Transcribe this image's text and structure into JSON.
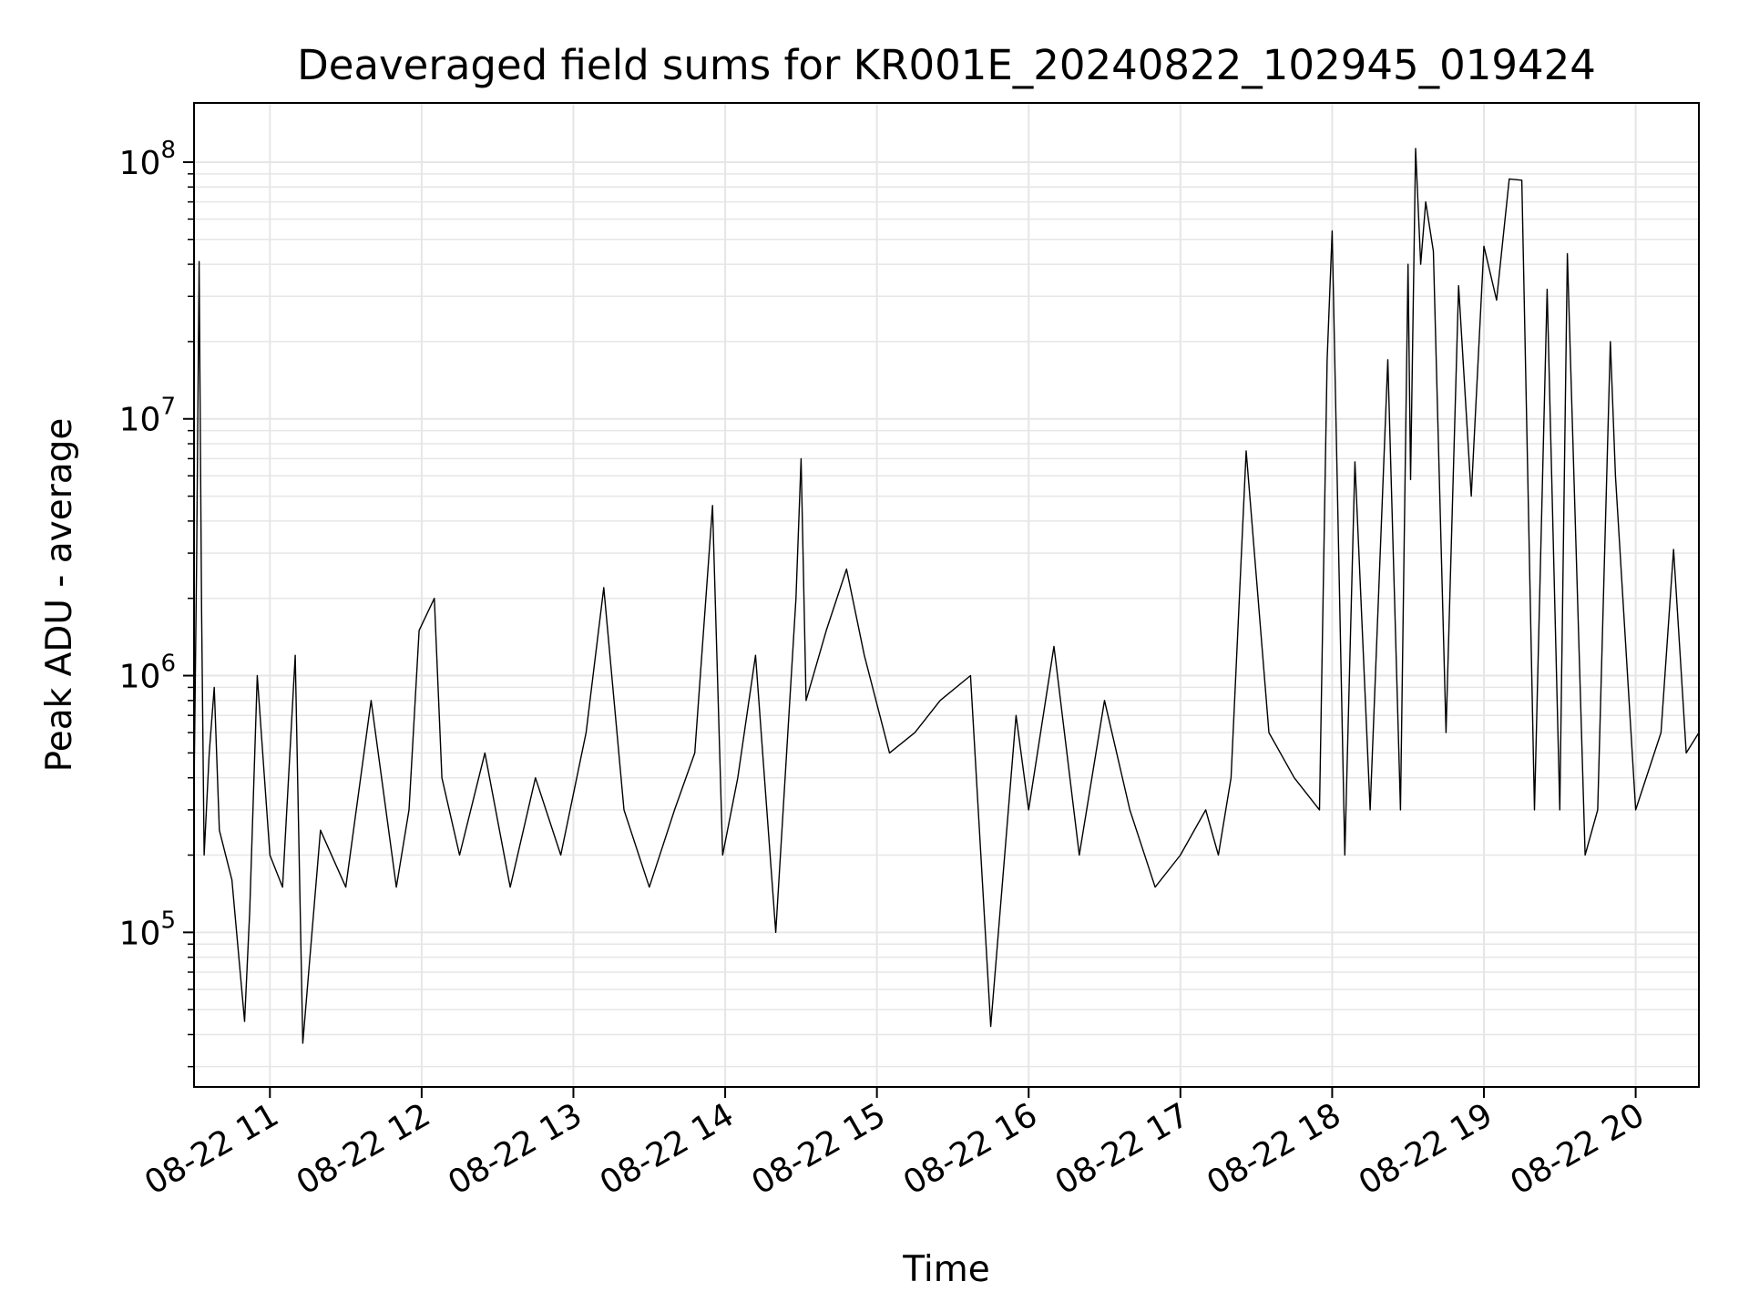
{
  "chart_data": {
    "type": "line",
    "title": "Deaveraged field sums for KR001E_20240822_102945_019424",
    "xlabel": "Time",
    "ylabel": "Peak ADU - average",
    "yscale": "log",
    "ylim": [
      25000,
      170000000
    ],
    "xlim": [
      "2024-08-22 10:30",
      "2024-08-22 20:25"
    ],
    "grid": true,
    "line_color": "#000000",
    "x_ticks": [
      {
        "time": "2024-08-22 11:00",
        "label": "08-22 11"
      },
      {
        "time": "2024-08-22 12:00",
        "label": "08-22 12"
      },
      {
        "time": "2024-08-22 13:00",
        "label": "08-22 13"
      },
      {
        "time": "2024-08-22 14:00",
        "label": "08-22 14"
      },
      {
        "time": "2024-08-22 15:00",
        "label": "08-22 15"
      },
      {
        "time": "2024-08-22 16:00",
        "label": "08-22 16"
      },
      {
        "time": "2024-08-22 17:00",
        "label": "08-22 17"
      },
      {
        "time": "2024-08-22 18:00",
        "label": "08-22 18"
      },
      {
        "time": "2024-08-22 19:00",
        "label": "08-22 19"
      },
      {
        "time": "2024-08-22 20:00",
        "label": "08-22 20"
      }
    ],
    "y_ticks": [
      {
        "value": 100000,
        "base": "10",
        "exp": "5"
      },
      {
        "value": 1000000,
        "base": "10",
        "exp": "6"
      },
      {
        "value": 10000000,
        "base": "10",
        "exp": "7"
      },
      {
        "value": 100000000,
        "base": "10",
        "exp": "8"
      }
    ],
    "series": [
      {
        "x": [
          "2024-08-22 10:30",
          "2024-08-22 10:31",
          "2024-08-22 10:32",
          "2024-08-22 10:33",
          "2024-08-22 10:34",
          "2024-08-22 10:36",
          "2024-08-22 10:38",
          "2024-08-22 10:40",
          "2024-08-22 10:45",
          "2024-08-22 10:50",
          "2024-08-22 10:52",
          "2024-08-22 10:55",
          "2024-08-22 11:00",
          "2024-08-22 11:05",
          "2024-08-22 11:10",
          "2024-08-22 11:13",
          "2024-08-22 11:20",
          "2024-08-22 11:30",
          "2024-08-22 11:40",
          "2024-08-22 11:50",
          "2024-08-22 11:55",
          "2024-08-22 11:59",
          "2024-08-22 12:05",
          "2024-08-22 12:08",
          "2024-08-22 12:15",
          "2024-08-22 12:25",
          "2024-08-22 12:35",
          "2024-08-22 12:45",
          "2024-08-22 12:55",
          "2024-08-22 13:05",
          "2024-08-22 13:12",
          "2024-08-22 13:20",
          "2024-08-22 13:30",
          "2024-08-22 13:40",
          "2024-08-22 13:48",
          "2024-08-22 13:55",
          "2024-08-22 13:59",
          "2024-08-22 14:05",
          "2024-08-22 14:12",
          "2024-08-22 14:20",
          "2024-08-22 14:28",
          "2024-08-22 14:30",
          "2024-08-22 14:32",
          "2024-08-22 14:40",
          "2024-08-22 14:48",
          "2024-08-22 14:55",
          "2024-08-22 15:05",
          "2024-08-22 15:15",
          "2024-08-22 15:25",
          "2024-08-22 15:37",
          "2024-08-22 15:45",
          "2024-08-22 15:55",
          "2024-08-22 16:00",
          "2024-08-22 16:10",
          "2024-08-22 16:20",
          "2024-08-22 16:30",
          "2024-08-22 16:40",
          "2024-08-22 16:50",
          "2024-08-22 17:00",
          "2024-08-22 17:10",
          "2024-08-22 17:15",
          "2024-08-22 17:20",
          "2024-08-22 17:26",
          "2024-08-22 17:35",
          "2024-08-22 17:45",
          "2024-08-22 17:55",
          "2024-08-22 17:58",
          "2024-08-22 18:00",
          "2024-08-22 18:05",
          "2024-08-22 18:09",
          "2024-08-22 18:15",
          "2024-08-22 18:22",
          "2024-08-22 18:27",
          "2024-08-22 18:30",
          "2024-08-22 18:31",
          "2024-08-22 18:33",
          "2024-08-22 18:35",
          "2024-08-22 18:37",
          "2024-08-22 18:40",
          "2024-08-22 18:45",
          "2024-08-22 18:50",
          "2024-08-22 18:55",
          "2024-08-22 19:00",
          "2024-08-22 19:05",
          "2024-08-22 19:10",
          "2024-08-22 19:15",
          "2024-08-22 19:20",
          "2024-08-22 19:25",
          "2024-08-22 19:30",
          "2024-08-22 19:33",
          "2024-08-22 19:40",
          "2024-08-22 19:45",
          "2024-08-22 19:50",
          "2024-08-22 19:52",
          "2024-08-22 20:00",
          "2024-08-22 20:10",
          "2024-08-22 20:15",
          "2024-08-22 20:20",
          "2024-08-22 20:25"
        ],
        "values": [
          350000,
          2700000,
          41000000,
          1800000,
          200000,
          500000,
          900000,
          250000,
          160000,
          45000,
          120000,
          1000000,
          200000,
          150000,
          1200000,
          37000,
          250000,
          150000,
          800000,
          150000,
          300000,
          1500000,
          2000000,
          400000,
          200000,
          500000,
          150000,
          400000,
          200000,
          600000,
          2200000,
          300000,
          150000,
          300000,
          500000,
          4600000,
          200000,
          400000,
          1200000,
          100000,
          2000000,
          7000000,
          800000,
          1500000,
          2600000,
          1200000,
          500000,
          600000,
          800000,
          1000000,
          43000,
          700000,
          300000,
          1300000,
          200000,
          800000,
          300000,
          150000,
          200000,
          300000,
          200000,
          400000,
          7500000,
          600000,
          400000,
          300000,
          17000000,
          54000000,
          200000,
          6800000,
          300000,
          17000000,
          300000,
          40000000,
          5800000,
          113000000,
          40000000,
          70000000,
          45000000,
          600000,
          33000000,
          5000000,
          47000000,
          29000000,
          86000000,
          85000000,
          300000,
          32000000,
          300000,
          44000000,
          200000,
          300000,
          20000000,
          6000000,
          300000,
          600000,
          3100000,
          500000,
          600000
        ]
      }
    ]
  }
}
